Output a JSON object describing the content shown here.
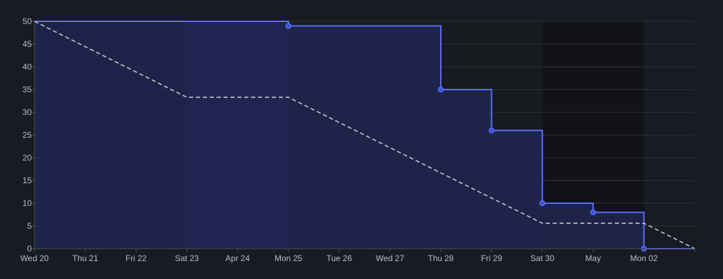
{
  "chart_data": {
    "type": "line",
    "title": "",
    "xlabel": "",
    "ylabel": "",
    "x_ticks": [
      "Wed 20",
      "Thu 21",
      "Fri 22",
      "Sat 23",
      "Apr 24",
      "Mon 25",
      "Tue 26",
      "Wed 27",
      "Thu 28",
      "Fri 29",
      "Sat 30",
      "May",
      "Mon 02"
    ],
    "y_ticks": [
      "0",
      "5",
      "10",
      "15",
      "20",
      "25",
      "30",
      "35",
      "40",
      "45",
      "50"
    ],
    "ylim": [
      0,
      50
    ],
    "x_day_range": [
      0,
      13
    ],
    "grid": true,
    "legend": "none",
    "weekend_bands": [
      {
        "start_day": 3,
        "end_day": 5,
        "color": "#1c2244"
      },
      {
        "start_day": 10,
        "end_day": 12,
        "color": "#111316"
      }
    ],
    "non_working_band": {
      "start_day": 8,
      "end_day": 10,
      "color": "#171a1f"
    },
    "series": [
      {
        "style": "step",
        "color": "#5b6ef5",
        "fill": "#202754",
        "x": [
          0,
          5,
          8,
          9,
          10,
          11,
          12,
          13
        ],
        "y": [
          50,
          49,
          35,
          26,
          10,
          8,
          0,
          0
        ],
        "markers_x": [
          5,
          8,
          9,
          10,
          11,
          12
        ]
      },
      {
        "style": "dashed",
        "color": "#c4c7ce",
        "x": [
          0,
          3,
          5,
          10,
          12,
          13
        ],
        "y": [
          50,
          33.3,
          33.3,
          5.6,
          5.6,
          0
        ]
      }
    ]
  }
}
